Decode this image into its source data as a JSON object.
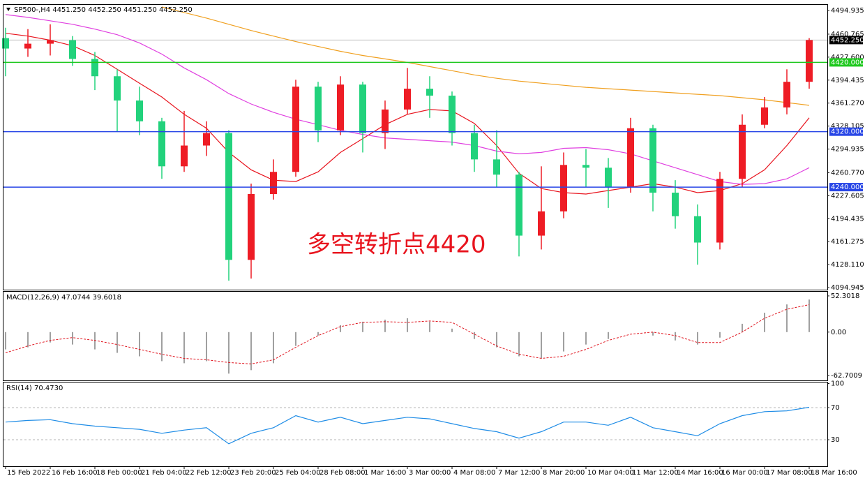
{
  "chart_data": [
    {
      "type": "candlestick",
      "title": "SP500-,H4  4451.250 4452.250 4451.250 4452.250",
      "annotation": "多空转折点4420",
      "categories": [
        "15 Feb 2022",
        null,
        "16 Feb 16:00",
        null,
        "18 Feb 00:00",
        null,
        "21 Feb 04:00",
        null,
        "22 Feb 12:00",
        null,
        "23 Feb 20:00",
        null,
        "25 Feb 04:00",
        null,
        "28 Feb 08:00",
        null,
        "1 Mar 16:00",
        null,
        "3 Mar 00:00",
        null,
        "4 Mar 08:00",
        null,
        "7 Mar 12:00",
        null,
        "8 Mar 20:00",
        null,
        "10 Mar 04:00",
        null,
        "11 Mar 12:00",
        null,
        "14 Mar 16:00",
        null,
        "16 Mar 00:00",
        null,
        "17 Mar 08:00",
        null,
        "18 Mar 16:00"
      ],
      "open": [
        4455,
        4440,
        4447,
        4452,
        4425,
        4400,
        4365,
        4335,
        4270,
        4300,
        4318,
        4135,
        4230,
        4262,
        4385,
        4322,
        4388,
        4318,
        4352,
        4382,
        4372,
        4318,
        4280,
        4258,
        4170,
        4205,
        4272,
        4268,
        4240,
        4325,
        4232,
        4198,
        4160,
        4252,
        4330,
        4355,
        4392
      ],
      "high": [
        4470,
        4468,
        4475,
        4458,
        4435,
        4410,
        4385,
        4340,
        4350,
        4335,
        4322,
        4245,
        4280,
        4395,
        4392,
        4400,
        4392,
        4365,
        4412,
        4400,
        4378,
        4330,
        4322,
        4262,
        4270,
        4290,
        4295,
        4282,
        4340,
        4330,
        4250,
        4215,
        4262,
        4345,
        4370,
        4410,
        4455
      ],
      "low": [
        4400,
        4428,
        4430,
        4415,
        4380,
        4320,
        4315,
        4252,
        4262,
        4285,
        4105,
        4108,
        4222,
        4255,
        4305,
        4315,
        4290,
        4295,
        4345,
        4340,
        4300,
        4262,
        4240,
        4140,
        4150,
        4195,
        4240,
        4210,
        4232,
        4205,
        4180,
        4128,
        4150,
        4240,
        4325,
        4345,
        4382
      ],
      "close": [
        4440,
        4447,
        4452,
        4425,
        4400,
        4365,
        4335,
        4270,
        4300,
        4318,
        4135,
        4230,
        4262,
        4385,
        4322,
        4388,
        4318,
        4352,
        4382,
        4372,
        4318,
        4280,
        4258,
        4170,
        4205,
        4272,
        4268,
        4240,
        4325,
        4232,
        4198,
        4160,
        4252,
        4330,
        4355,
        4392,
        4452.25
      ],
      "up_color": "#ee1c25",
      "down_color": "#22d27c",
      "overlays": [
        {
          "color": "#e8141e",
          "values": [
            4462,
            4458,
            4452,
            4444,
            4430,
            4410,
            4390,
            4370,
            4345,
            4325,
            4290,
            4265,
            4250,
            4248,
            4262,
            4290,
            4310,
            4330,
            4345,
            4352,
            4350,
            4332,
            4300,
            4260,
            4238,
            4232,
            4230,
            4235,
            4240,
            4245,
            4240,
            4232,
            4235,
            4245,
            4265,
            4300,
            4340
          ]
        },
        {
          "color": "#e040e0",
          "values": [
            4489,
            4485,
            4480,
            4475,
            4468,
            4460,
            4448,
            4432,
            4412,
            4395,
            4375,
            4360,
            4348,
            4338,
            4330,
            4322,
            4316,
            4311,
            4309,
            4307,
            4305,
            4300,
            4292,
            4288,
            4290,
            4296,
            4297,
            4294,
            4288,
            4278,
            4268,
            4258,
            4248,
            4244,
            4245,
            4252,
            4268
          ]
        },
        {
          "color": "#f0a020",
          "values": [
            null,
            null,
            null,
            null,
            null,
            null,
            null,
            4500,
            4492,
            4484,
            4475,
            4466,
            4458,
            4450,
            4443,
            4436,
            4430,
            4425,
            4420,
            4414,
            4408,
            4402,
            4397,
            4393,
            4390,
            4387,
            4384,
            4382,
            4380,
            4378,
            4376,
            4374,
            4372,
            4369,
            4366,
            4362,
            4358
          ]
        }
      ],
      "levels": [
        {
          "value": 4420,
          "label": "4420.000",
          "color": "#1ec81e"
        },
        {
          "value": 4320,
          "label": "4320.000",
          "color": "#2846e6"
        },
        {
          "value": 4240,
          "label": "4240.000",
          "color": "#2846e6"
        }
      ],
      "last_price": {
        "value": 4452.25,
        "label": "4452.250"
      },
      "ylim": [
        4092,
        4503
      ],
      "yticks": [
        4494.935,
        4460.765,
        {
          "value": 4427.6,
          "label": "4427.600"
        },
        4394.435,
        {
          "value": 4361.27,
          "label": "4361.270"
        },
        4328.105,
        4294.935,
        {
          "value": 4260.77,
          "label": "4260.770"
        },
        4227.605,
        4194.435,
        4161.275,
        {
          "value": 4128.11,
          "label": "4128.110"
        },
        4094.945
      ]
    },
    {
      "type": "macd",
      "title": "MACD(12,26,9) 47.0744 39.6018",
      "histogram": [
        -25,
        -22,
        -15,
        -18,
        -25,
        -30,
        -35,
        -42,
        -45,
        -42,
        -60,
        -55,
        -45,
        -20,
        -5,
        10,
        15,
        18,
        20,
        15,
        5,
        -10,
        -22,
        -35,
        -38,
        -28,
        -18,
        -10,
        0,
        -5,
        -12,
        -18,
        -8,
        12,
        28,
        40,
        47.0744
      ],
      "signal": [
        -30,
        -20,
        -12,
        -8,
        -12,
        -18,
        -25,
        -32,
        -38,
        -40,
        -44,
        -46,
        -40,
        -22,
        -5,
        8,
        14,
        15,
        14,
        16,
        14,
        -3,
        -20,
        -32,
        -38,
        -35,
        -25,
        -12,
        -3,
        0,
        -5,
        -15,
        -15,
        0,
        20,
        33,
        39.6018
      ],
      "histogram_color": "#a0a0a0",
      "signal_color": "#e0141e",
      "ylim": [
        -69.8,
        58.3
      ],
      "yticks": [
        52.3018,
        {
          "value": 0,
          "label": "0.00"
        },
        -62.7009
      ]
    },
    {
      "type": "rsi",
      "title": "RSI(14) 70.4730",
      "values": [
        52,
        54,
        55,
        50,
        47,
        45,
        43,
        38,
        42,
        45,
        25,
        38,
        45,
        60,
        52,
        58,
        50,
        54,
        58,
        56,
        50,
        44,
        40,
        32,
        40,
        52,
        52,
        48,
        58,
        45,
        40,
        35,
        50,
        60,
        65,
        66,
        70.473
      ],
      "color": "#1e8ce6",
      "levels": [
        70,
        30
      ],
      "ylim": [
        -3,
        101.3
      ],
      "yticks": [
        100,
        70,
        30
      ]
    }
  ]
}
